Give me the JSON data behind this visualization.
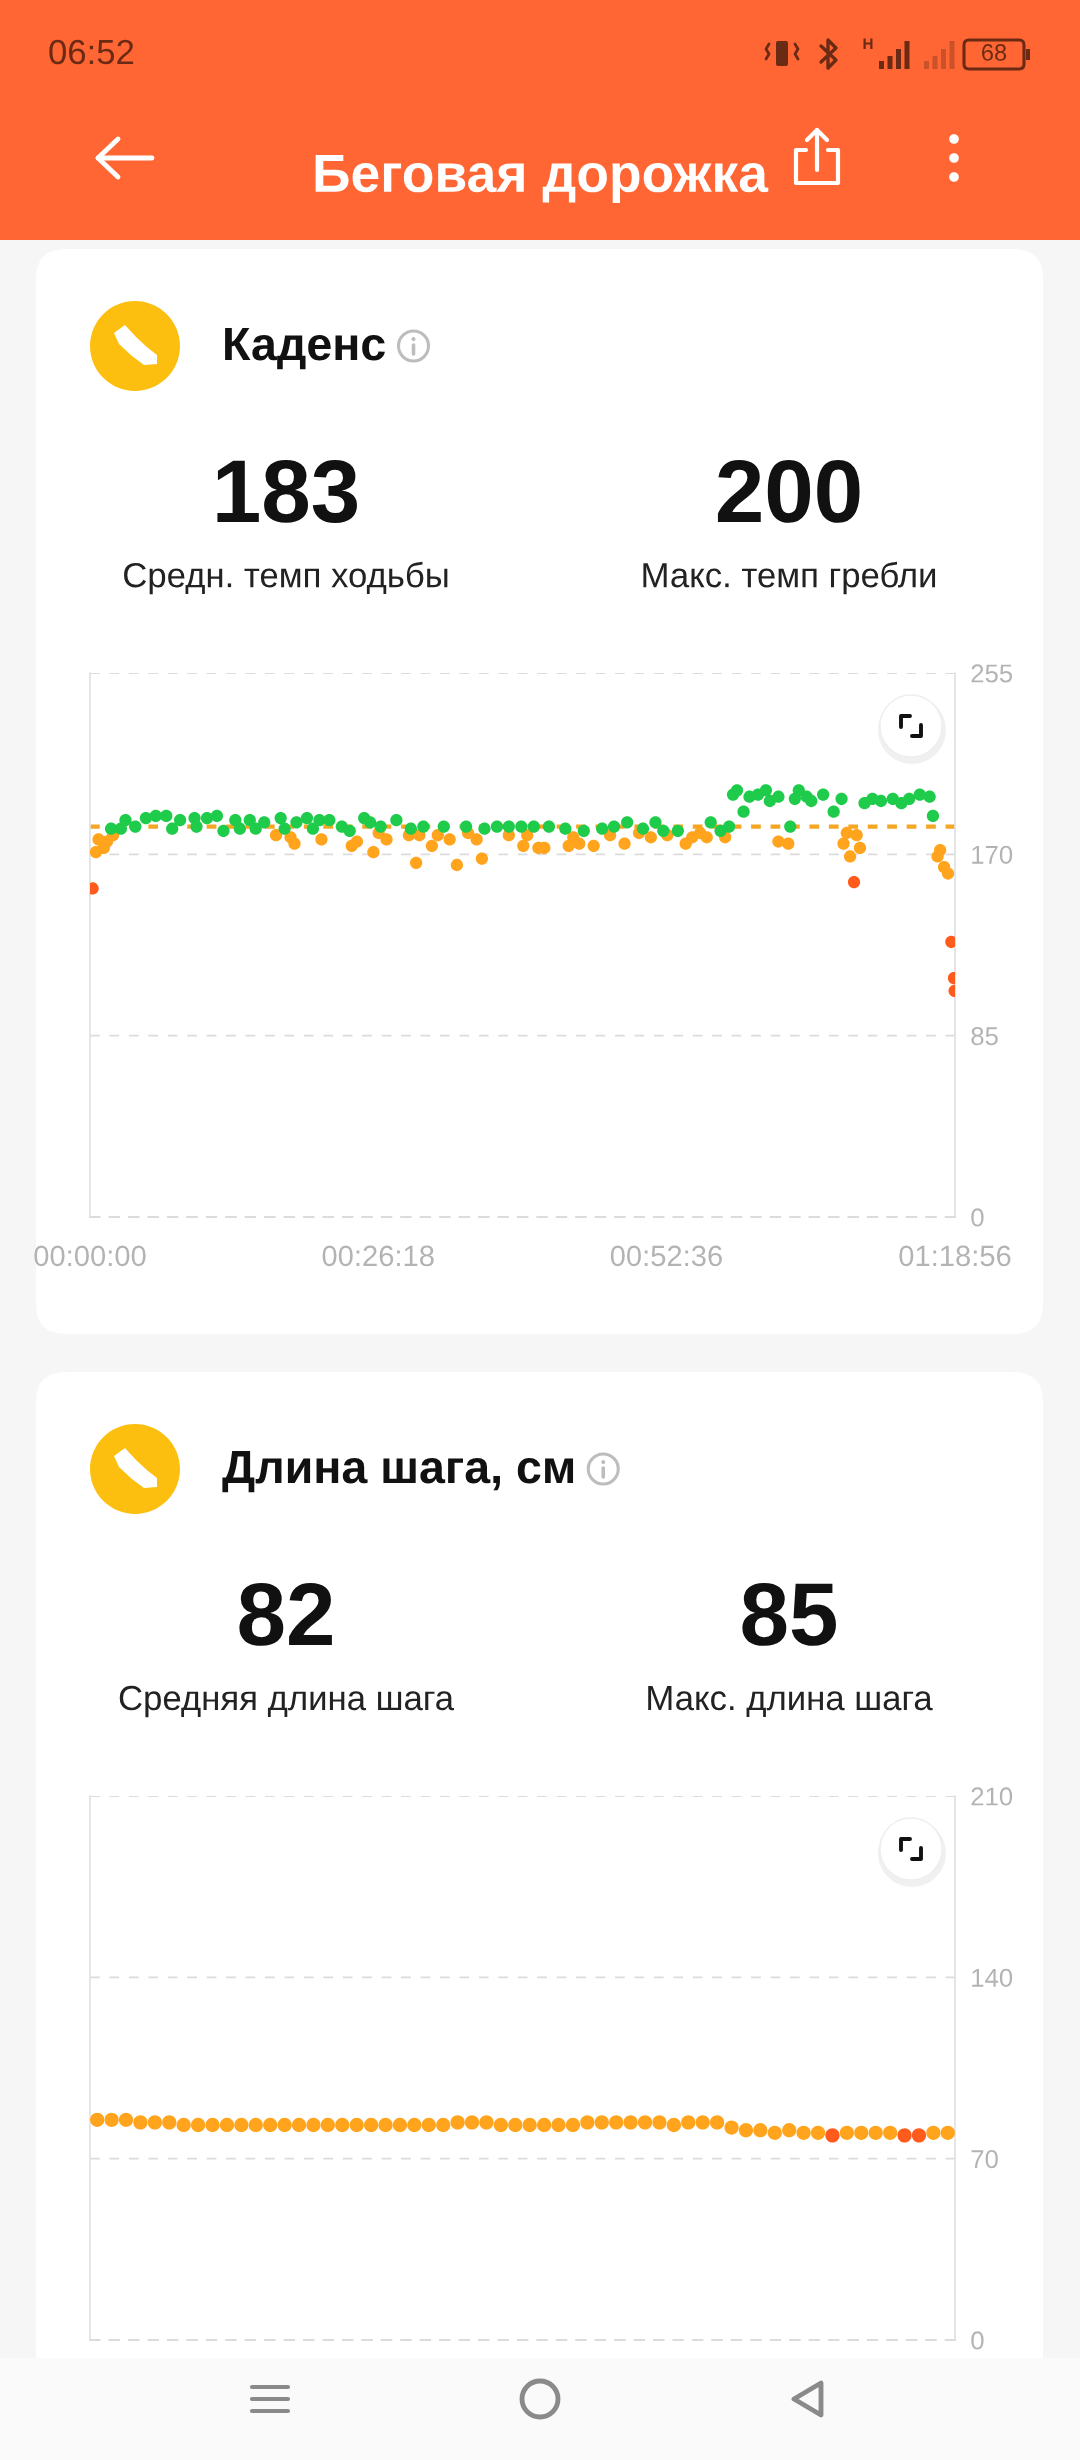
{
  "chart_data": [
    {
      "type": "other",
      "title": "Беговая дорожка",
      "annotations": [
        "06:52",
        "H",
        "68"
      ]
    },
    {
      "type": "scatter",
      "title": "Каденс",
      "annotations": [
        "183",
        "Средн. темп ходьбы",
        "200",
        "Макс. темп гребли"
      ],
      "xlim": [
        0,
        1.31556
      ],
      "xticks": [
        {
          "value": 0,
          "label": "00:00:00"
        },
        {
          "value": 0.43833,
          "label": "00:26:18"
        },
        {
          "value": 0.87667,
          "label": "00:52:36"
        },
        {
          "value": 1.31556,
          "label": "01:18:56"
        }
      ],
      "ylim": [
        0,
        255
      ],
      "yticks": [
        0,
        85,
        170,
        255
      ],
      "grid": "y",
      "marker": "circle",
      "ref_lines": [
        {
          "axis": "y",
          "value": 183,
          "color": "#f5a623",
          "line_style": "dashed"
        }
      ],
      "series": [
        {
          "color": "#ffa41c",
          "x": [
            0.009,
            0.013,
            0.021,
            0.026,
            0.035,
            0.283,
            0.305,
            0.311,
            0.352,
            0.398,
            0.406,
            0.431,
            0.439,
            0.451,
            0.485,
            0.496,
            0.501,
            0.52,
            0.529,
            0.547,
            0.558,
            0.575,
            0.588,
            0.596,
            0.637,
            0.659,
            0.665,
            0.682,
            0.691,
            0.728,
            0.735,
            0.744,
            0.766,
            0.791,
            0.813,
            0.835,
            0.853,
            0.878,
            0.906,
            0.916,
            0.928,
            0.938,
            0.966,
            1.047,
            1.062,
            1.146,
            1.151,
            1.156,
            1.166,
            1.171,
            1.289,
            1.293,
            1.299,
            1.305
          ],
          "values": [
            171,
            177,
            173,
            176,
            179,
            179,
            178,
            175,
            177,
            174,
            176,
            171,
            180,
            177,
            179,
            166,
            179,
            174,
            179,
            177,
            165,
            180,
            177,
            168,
            179,
            174,
            179,
            173,
            173,
            174,
            178,
            175,
            174,
            179,
            175,
            180,
            178,
            179,
            175,
            178,
            180,
            178,
            178,
            176,
            175,
            175,
            180,
            169,
            179,
            173,
            169,
            172,
            164,
            161
          ]
        },
        {
          "color": "#1fcb4a",
          "x": [
            0.032,
            0.047,
            0.054,
            0.069,
            0.085,
            0.1,
            0.116,
            0.125,
            0.137,
            0.159,
            0.162,
            0.178,
            0.193,
            0.203,
            0.221,
            0.228,
            0.243,
            0.252,
            0.265,
            0.29,
            0.296,
            0.314,
            0.33,
            0.339,
            0.349,
            0.364,
            0.383,
            0.395,
            0.417,
            0.426,
            0.442,
            0.466,
            0.488,
            0.507,
            0.538,
            0.572,
            0.6,
            0.619,
            0.637,
            0.656,
            0.675,
            0.698,
            0.723,
            0.751,
            0.779,
            0.797,
            0.817,
            0.841,
            0.86,
            0.872,
            0.894,
            0.944,
            0.959,
            0.972,
            0.978,
            0.984,
            0.994,
            1.003,
            1.016,
            1.028,
            1.034,
            1.047,
            1.065,
            1.072,
            1.078,
            1.09,
            1.097,
            1.115,
            1.131,
            1.143,
            1.178,
            1.19,
            1.203,
            1.221,
            1.234,
            1.246,
            1.262,
            1.277,
            1.282
          ],
          "values": [
            182,
            182,
            186,
            183,
            187,
            188,
            188,
            182,
            186,
            187,
            183,
            187,
            188,
            181,
            186,
            182,
            186,
            182,
            185,
            187,
            182,
            185,
            187,
            182,
            186,
            186,
            183,
            181,
            187,
            185,
            183,
            186,
            182,
            183,
            183,
            183,
            182,
            183,
            183,
            183,
            183,
            183,
            182,
            181,
            182,
            183,
            185,
            182,
            185,
            181,
            181,
            185,
            181,
            183,
            198,
            200,
            190,
            197,
            198,
            200,
            195,
            197,
            183,
            196,
            200,
            197,
            195,
            198,
            190,
            196,
            194,
            196,
            195,
            196,
            194,
            196,
            198,
            197,
            188
          ]
        },
        {
          "color": "#ff5b1c",
          "x": [
            0.004,
            1.162,
            1.31,
            1.314,
            1.315
          ],
          "values": [
            154,
            157,
            129,
            112,
            106
          ]
        }
      ]
    },
    {
      "type": "scatter",
      "title": "Длина шага, см",
      "annotations": [
        "82",
        "Средняя длина шага",
        "85",
        "Макс. длина шага"
      ],
      "categories": [
        null,
        null,
        null,
        null,
        null,
        null,
        null,
        null,
        null,
        null,
        null,
        null,
        null,
        null,
        null,
        null,
        null,
        null,
        null,
        null,
        null,
        null,
        null,
        null,
        null,
        null,
        null,
        null,
        null,
        null,
        null,
        null,
        null,
        null,
        null,
        null,
        null,
        null,
        null,
        null,
        null,
        null,
        null,
        null,
        null,
        null,
        null,
        null,
        null,
        null,
        null,
        null,
        null,
        null,
        null,
        null,
        null,
        null,
        null,
        null
      ],
      "ylim": [
        0,
        210
      ],
      "yticks": [
        0,
        70,
        140,
        210
      ],
      "grid": "y",
      "marker": "circle",
      "tick_labels": "y",
      "series": [
        {
          "color": "#ffa41c",
          "values": [
            85,
            85,
            85,
            84,
            84,
            84,
            83,
            83,
            83,
            83,
            83,
            83,
            83,
            83,
            83,
            83,
            83,
            83,
            83,
            83,
            83,
            83,
            83,
            83,
            83,
            84,
            84,
            84,
            83,
            83,
            83,
            83,
            83,
            83,
            84,
            84,
            84,
            84,
            84,
            84,
            83,
            84,
            84,
            84,
            82,
            81,
            81,
            80,
            81,
            80,
            80,
            null,
            80,
            80,
            80,
            80,
            null,
            null,
            80,
            80
          ]
        },
        {
          "color": "#ff5b1c",
          "values": [
            null,
            null,
            null,
            null,
            null,
            null,
            null,
            null,
            null,
            null,
            null,
            null,
            null,
            null,
            null,
            null,
            null,
            null,
            null,
            null,
            null,
            null,
            null,
            null,
            null,
            null,
            null,
            null,
            null,
            null,
            null,
            null,
            null,
            null,
            null,
            null,
            null,
            null,
            null,
            null,
            null,
            null,
            null,
            null,
            null,
            null,
            null,
            null,
            null,
            null,
            null,
            79,
            null,
            null,
            null,
            null,
            79,
            79,
            null,
            null
          ]
        }
      ]
    }
  ]
}
